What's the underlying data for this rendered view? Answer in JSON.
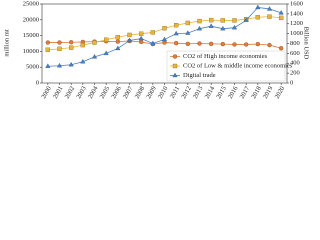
{
  "chart_data": {
    "type": "line",
    "categories": [
      "2000",
      "2001",
      "2002",
      "2003",
      "2004",
      "2005",
      "2006",
      "2007",
      "2008",
      "2009",
      "2010",
      "2011",
      "2012",
      "2013",
      "2014",
      "2015",
      "2016",
      "2017",
      "2018",
      "2019",
      "2020"
    ],
    "ylabel": "million mt",
    "y2label": "Billion USD",
    "ylim": [
      0,
      25000
    ],
    "yticks": [
      0,
      5000,
      10000,
      15000,
      20000,
      25000
    ],
    "y2lim": [
      0,
      1600
    ],
    "y2ticks": [
      0,
      200,
      400,
      600,
      800,
      1000,
      1200,
      1400,
      1600
    ],
    "legend": "lower right",
    "grid": false,
    "series": [
      {
        "name": "CO2 of High income economies",
        "color": "#e07b39",
        "marker": "circle",
        "values": [
          12800,
          12800,
          12900,
          13000,
          13100,
          13200,
          13100,
          13300,
          13000,
          12300,
          12800,
          12600,
          12400,
          12500,
          12400,
          12300,
          12200,
          12200,
          12300,
          12000,
          11000
        ]
      },
      {
        "name": "CO2 of Low & middle income economies",
        "color": "#e9b43c",
        "marker": "square",
        "values": [
          10500,
          10800,
          11200,
          12000,
          12800,
          13700,
          14500,
          15200,
          15600,
          16000,
          17300,
          18300,
          19000,
          19600,
          19900,
          19800,
          19800,
          20200,
          20800,
          21000,
          20600
        ]
      },
      {
        "name": "Digital trade",
        "color": "#4a7fc1",
        "marker": "triangle",
        "axis": "y2",
        "values": [
          340,
          350,
          370,
          430,
          530,
          600,
          700,
          860,
          900,
          800,
          880,
          1000,
          1010,
          1100,
          1150,
          1100,
          1120,
          1270,
          1530,
          1500,
          1420
        ]
      }
    ]
  }
}
